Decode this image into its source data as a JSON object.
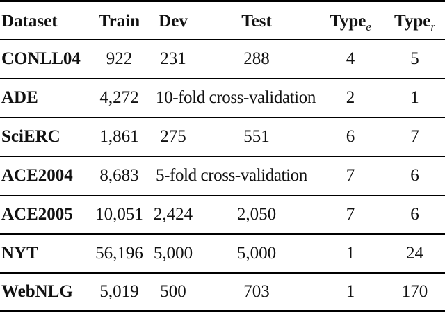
{
  "colors": {
    "background": "#ffffff",
    "text": "#111111",
    "rule": "#000000",
    "top_rule_echo": "#8f8f8f"
  },
  "table": {
    "columns": [
      {
        "label": "Dataset"
      },
      {
        "label": "Train"
      },
      {
        "label": "Dev"
      },
      {
        "label": "Test"
      },
      {
        "label": "Type",
        "sub": "e"
      },
      {
        "label": "Type",
        "sub": "r"
      }
    ],
    "rows": [
      {
        "dataset": "CONLL04",
        "train": "922",
        "dev": "231",
        "test": "288",
        "type_e": "4",
        "type_r": "5"
      },
      {
        "dataset": "ADE",
        "train": "4,272",
        "dev_test": "10-fold cross-validation",
        "type_e": "2",
        "type_r": "1"
      },
      {
        "dataset": "SciERC",
        "train": "1,861",
        "dev": "275",
        "test": "551",
        "type_e": "6",
        "type_r": "7"
      },
      {
        "dataset": "ACE2004",
        "train": "8,683",
        "dev_test": "5-fold cross-validation",
        "type_e": "7",
        "type_r": "6"
      },
      {
        "dataset": "ACE2005",
        "train": "10,051",
        "dev": "2,424",
        "test": "2,050",
        "type_e": "7",
        "type_r": "6"
      },
      {
        "dataset": "NYT",
        "train": "56,196",
        "dev": "5,000",
        "test": "5,000",
        "type_e": "1",
        "type_r": "24"
      },
      {
        "dataset": "WebNLG",
        "train": "5,019",
        "dev": "500",
        "test": "703",
        "type_e": "1",
        "type_r": "170"
      }
    ]
  }
}
